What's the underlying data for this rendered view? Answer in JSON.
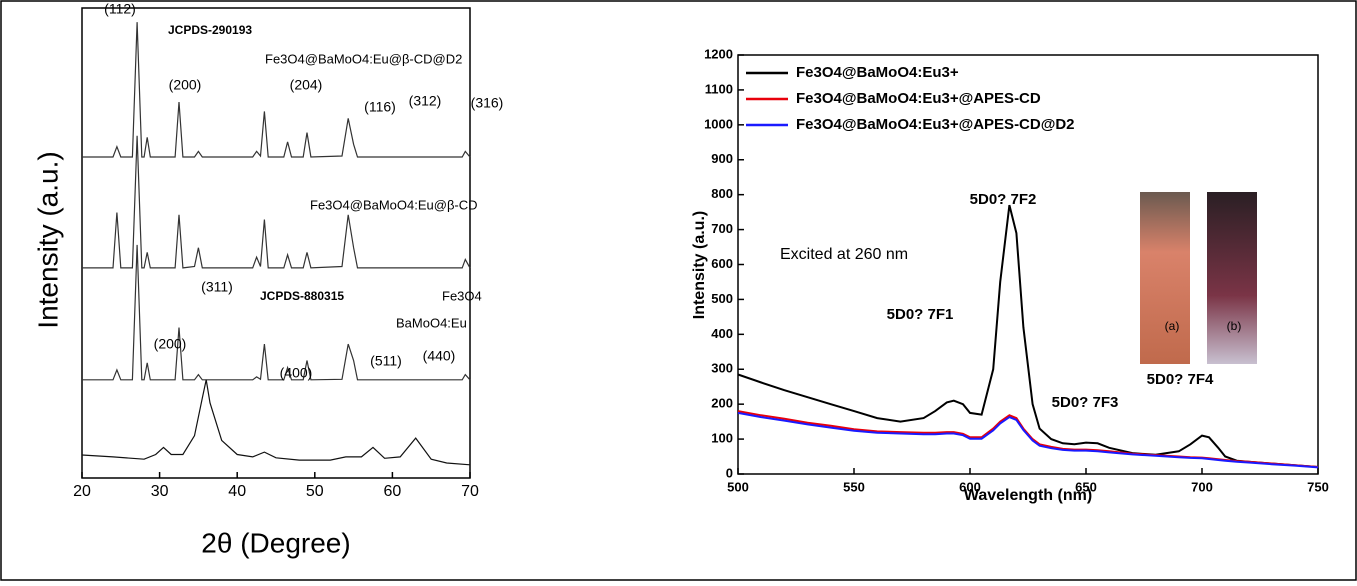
{
  "chart_data": [
    {
      "type": "line",
      "x_label": "2θ (Degree)",
      "y_label": "Intensity (a.u.)",
      "xlim": [
        20,
        70
      ],
      "xticks": [
        20,
        30,
        40,
        50,
        60,
        70
      ],
      "ylim": [
        0,
        100
      ],
      "annotations": [
        "(112)",
        "JCPDS-290193",
        "Fe3O4@BaMoO4:Eu@β-CD@D2",
        "(200)",
        "(204)",
        "(116)",
        "(312)",
        "(316)",
        "Fe3O4@BaMoO4:Eu@β-CD",
        "BaMoO4:Eu",
        "(311)",
        "JCPDS-880315",
        "Fe3O4",
        "(200)",
        "(400)",
        "(511)",
        "(440)"
      ],
      "x": [
        20,
        24,
        24.5,
        25,
        26.5,
        27.1,
        27.7,
        28,
        28.4,
        28.8,
        32,
        32.5,
        33,
        34.5,
        35,
        35.5,
        42,
        42.5,
        43,
        43.5,
        44,
        46,
        46.5,
        47,
        48.5,
        49,
        49.5,
        53.5,
        54.3,
        55,
        55.5,
        69,
        69.4,
        70
      ],
      "series": [
        {
          "color": "#333333",
          "values": [
            68.3,
            68.3,
            70.5,
            68.3,
            68.3,
            97,
            68.3,
            68.3,
            72.5,
            68.3,
            68.3,
            80,
            68.3,
            68.3,
            69.5,
            68.3,
            68.3,
            69.5,
            68.5,
            78,
            68.3,
            68.3,
            71.5,
            68.3,
            68.3,
            73.5,
            68.3,
            68.5,
            76.5,
            71,
            68.3,
            68.3,
            69.5,
            68.3
          ]
        },
        {
          "color": "#333333",
          "values": [
            44.7,
            44.7,
            56.5,
            44.7,
            44.7,
            72.8,
            44.7,
            44.7,
            48,
            44.7,
            44.7,
            56,
            44.7,
            45,
            49,
            44.7,
            44.7,
            47,
            45,
            55,
            44.7,
            44.7,
            47.5,
            44.7,
            44.7,
            48,
            44.7,
            45,
            56,
            49,
            44.7,
            44.7,
            46.5,
            44.7
          ]
        },
        {
          "color": "#333333",
          "values": [
            20.9,
            20.9,
            23,
            20.9,
            20.9,
            49.6,
            20.9,
            20.9,
            24.5,
            20.9,
            20.9,
            32,
            20.9,
            20.9,
            22,
            20.9,
            20.9,
            21.5,
            21,
            28.5,
            20.9,
            20.9,
            23.5,
            20.9,
            20.9,
            25,
            20.9,
            21,
            28.5,
            25,
            20.9,
            20.9,
            22,
            20.9
          ]
        },
        {
          "color": "#111111",
          "x": [
            20,
            24,
            28,
            29.5,
            30.5,
            31.5,
            33,
            34.5,
            35.5,
            36,
            36.5,
            38,
            40,
            42,
            43.5,
            45,
            48,
            52,
            54,
            56,
            57.5,
            59,
            61,
            63,
            65,
            67,
            70
          ],
          "values": [
            4.9,
            4.5,
            4,
            5,
            6.5,
            5,
            5,
            9,
            17,
            20.9,
            16,
            8,
            5,
            4.5,
            5.5,
            4.3,
            3.8,
            3.8,
            4.5,
            4.5,
            6.5,
            4.2,
            4.5,
            8.5,
            4,
            3.2,
            2.8
          ]
        }
      ]
    },
    {
      "type": "line",
      "x_label": "Wavelength (nm)",
      "y_label": "Intensity (a.u.)",
      "xlim": [
        500,
        750
      ],
      "xticks": [
        500,
        550,
        600,
        650,
        700,
        750
      ],
      "ylim": [
        0,
        1200
      ],
      "yticks": [
        0,
        100,
        200,
        300,
        400,
        500,
        600,
        700,
        800,
        900,
        1000,
        1100,
        1200
      ],
      "legend": "top-left",
      "annotations": [
        "Excited at 260 nm",
        "5D0? 7F2",
        "5D0? 7F1",
        "5D0? 7F3",
        "5D0? 7F4",
        "(a)",
        "(b)"
      ],
      "x": [
        500,
        510,
        520,
        530,
        540,
        550,
        560,
        570,
        580,
        585,
        590,
        593,
        597,
        600,
        605,
        610,
        613,
        617,
        620,
        623,
        627,
        630,
        635,
        640,
        645,
        650,
        655,
        660,
        670,
        680,
        690,
        695,
        700,
        703,
        707,
        710,
        715,
        720,
        730,
        740,
        750
      ],
      "series": [
        {
          "name": "Fe3O4@BaMoO4:Eu3+",
          "color": "#000000",
          "values": [
            285,
            262,
            240,
            220,
            200,
            180,
            160,
            150,
            160,
            180,
            205,
            210,
            200,
            175,
            170,
            300,
            550,
            770,
            690,
            420,
            200,
            130,
            100,
            88,
            85,
            90,
            88,
            75,
            60,
            55,
            65,
            85,
            110,
            105,
            75,
            50,
            38,
            35,
            30,
            25,
            20
          ]
        },
        {
          "name": "Fe3O4@BaMoO4:Eu3+@APES-CD",
          "color": "#e8000b",
          "values": [
            180,
            168,
            158,
            147,
            138,
            128,
            122,
            120,
            118,
            118,
            120,
            120,
            115,
            105,
            105,
            130,
            150,
            168,
            160,
            130,
            100,
            85,
            78,
            72,
            70,
            70,
            68,
            65,
            58,
            54,
            50,
            48,
            47,
            45,
            42,
            40,
            37,
            35,
            30,
            25,
            20
          ]
        },
        {
          "name": "Fe3O4@BaMoO4:Eu3+@APES-CD@D2",
          "color": "#1a1aff",
          "values": [
            175,
            163,
            153,
            142,
            133,
            124,
            118,
            116,
            114,
            114,
            116,
            116,
            111,
            101,
            101,
            125,
            145,
            163,
            155,
            126,
            96,
            81,
            74,
            69,
            67,
            67,
            65,
            62,
            56,
            52,
            48,
            46,
            45,
            43,
            40,
            38,
            35,
            33,
            28,
            24,
            19
          ]
        }
      ]
    }
  ]
}
